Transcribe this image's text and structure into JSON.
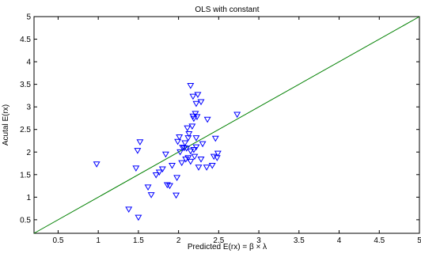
{
  "chart_data": {
    "type": "scatter",
    "title": "OLS with constant",
    "xlabel": "Predicted E(rx) = β × λ",
    "ylabel": "Acutal E(rx)",
    "xlim": [
      0.2,
      5
    ],
    "ylim": [
      0.2,
      5
    ],
    "xticks": [
      "0.5",
      "1",
      "1.5",
      "2",
      "2.5",
      "3",
      "3.5",
      "4",
      "4.5",
      "5"
    ],
    "yticks": [
      "0.5",
      "1",
      "1.5",
      "2",
      "2.5",
      "3",
      "3.5",
      "4",
      "4.5",
      "5"
    ],
    "grid": false,
    "marker": "triangle-down",
    "marker_color": "#0000ff",
    "line_color": "#008000",
    "reference_line": {
      "from": [
        0.2,
        0.2
      ],
      "to": [
        5,
        5
      ]
    },
    "series": [
      {
        "points": [
          [
            0.98,
            1.73
          ],
          [
            1.38,
            0.73
          ],
          [
            1.5,
            0.55
          ],
          [
            1.47,
            1.64
          ],
          [
            1.49,
            2.03
          ],
          [
            1.52,
            2.22
          ],
          [
            1.62,
            1.22
          ],
          [
            1.66,
            1.05
          ],
          [
            1.72,
            1.49
          ],
          [
            1.76,
            1.55
          ],
          [
            1.8,
            1.62
          ],
          [
            1.84,
            1.95
          ],
          [
            1.86,
            1.27
          ],
          [
            1.89,
            1.25
          ],
          [
            1.92,
            1.7
          ],
          [
            1.97,
            1.04
          ],
          [
            1.98,
            1.43
          ],
          [
            1.99,
            2.23
          ],
          [
            2.01,
            2.33
          ],
          [
            2.02,
            2.0
          ],
          [
            2.05,
            2.1
          ],
          [
            2.04,
            1.76
          ],
          [
            2.07,
            2.09
          ],
          [
            2.08,
            2.2
          ],
          [
            2.09,
            1.84
          ],
          [
            2.1,
            2.08
          ],
          [
            2.12,
            1.87
          ],
          [
            2.12,
            2.31
          ],
          [
            2.11,
            2.53
          ],
          [
            2.13,
            2.4
          ],
          [
            2.15,
            2.02
          ],
          [
            2.15,
            1.79
          ],
          [
            2.17,
            2.57
          ],
          [
            2.18,
            2.79
          ],
          [
            2.19,
            2.74
          ],
          [
            2.15,
            3.47
          ],
          [
            2.18,
            3.23
          ],
          [
            2.19,
            2.05
          ],
          [
            2.2,
            1.9
          ],
          [
            2.22,
            2.11
          ],
          [
            2.22,
            2.31
          ],
          [
            2.24,
            3.27
          ],
          [
            2.21,
            2.85
          ],
          [
            2.23,
            2.78
          ],
          [
            2.22,
            3.07
          ],
          [
            2.25,
            1.66
          ],
          [
            2.28,
            1.84
          ],
          [
            2.28,
            3.11
          ],
          [
            2.3,
            2.18
          ],
          [
            2.36,
            2.72
          ],
          [
            2.35,
            1.66
          ],
          [
            2.42,
            1.7
          ],
          [
            2.44,
            1.9
          ],
          [
            2.46,
            2.3
          ],
          [
            2.48,
            1.87
          ],
          [
            2.49,
            1.97
          ],
          [
            2.73,
            2.83
          ]
        ]
      }
    ]
  }
}
